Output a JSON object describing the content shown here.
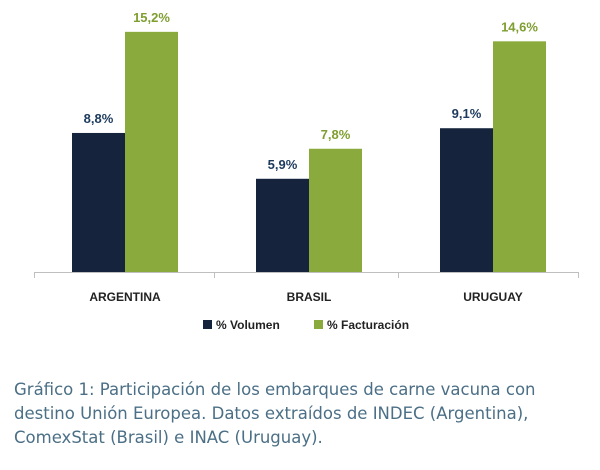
{
  "chart_data": {
    "type": "bar",
    "categories": [
      "ARGENTINA",
      "BRASIL",
      "URUGUAY"
    ],
    "series": [
      {
        "name": "% Volumen",
        "values": [
          8.8,
          5.9,
          9.1
        ],
        "labels": [
          "8,8%",
          "5,9%",
          "9,1%"
        ],
        "color": "#15233c",
        "label_color": "#1c3a5e"
      },
      {
        "name": "% Facturación",
        "values": [
          15.2,
          7.8,
          14.6
        ],
        "labels": [
          "15,2%",
          "7,8%",
          "14,6%"
        ],
        "color": "#8aaa3e",
        "label_color": "#7f9e31"
      }
    ],
    "legend_position": "bottom",
    "grid": false
  },
  "caption": "Gráfico 1: Participación de los embarques de carne vacuna con destino Unión Europea. Datos extraídos de INDEC (Argentina), ComexStat (Brasil) e INAC (Uruguay)."
}
